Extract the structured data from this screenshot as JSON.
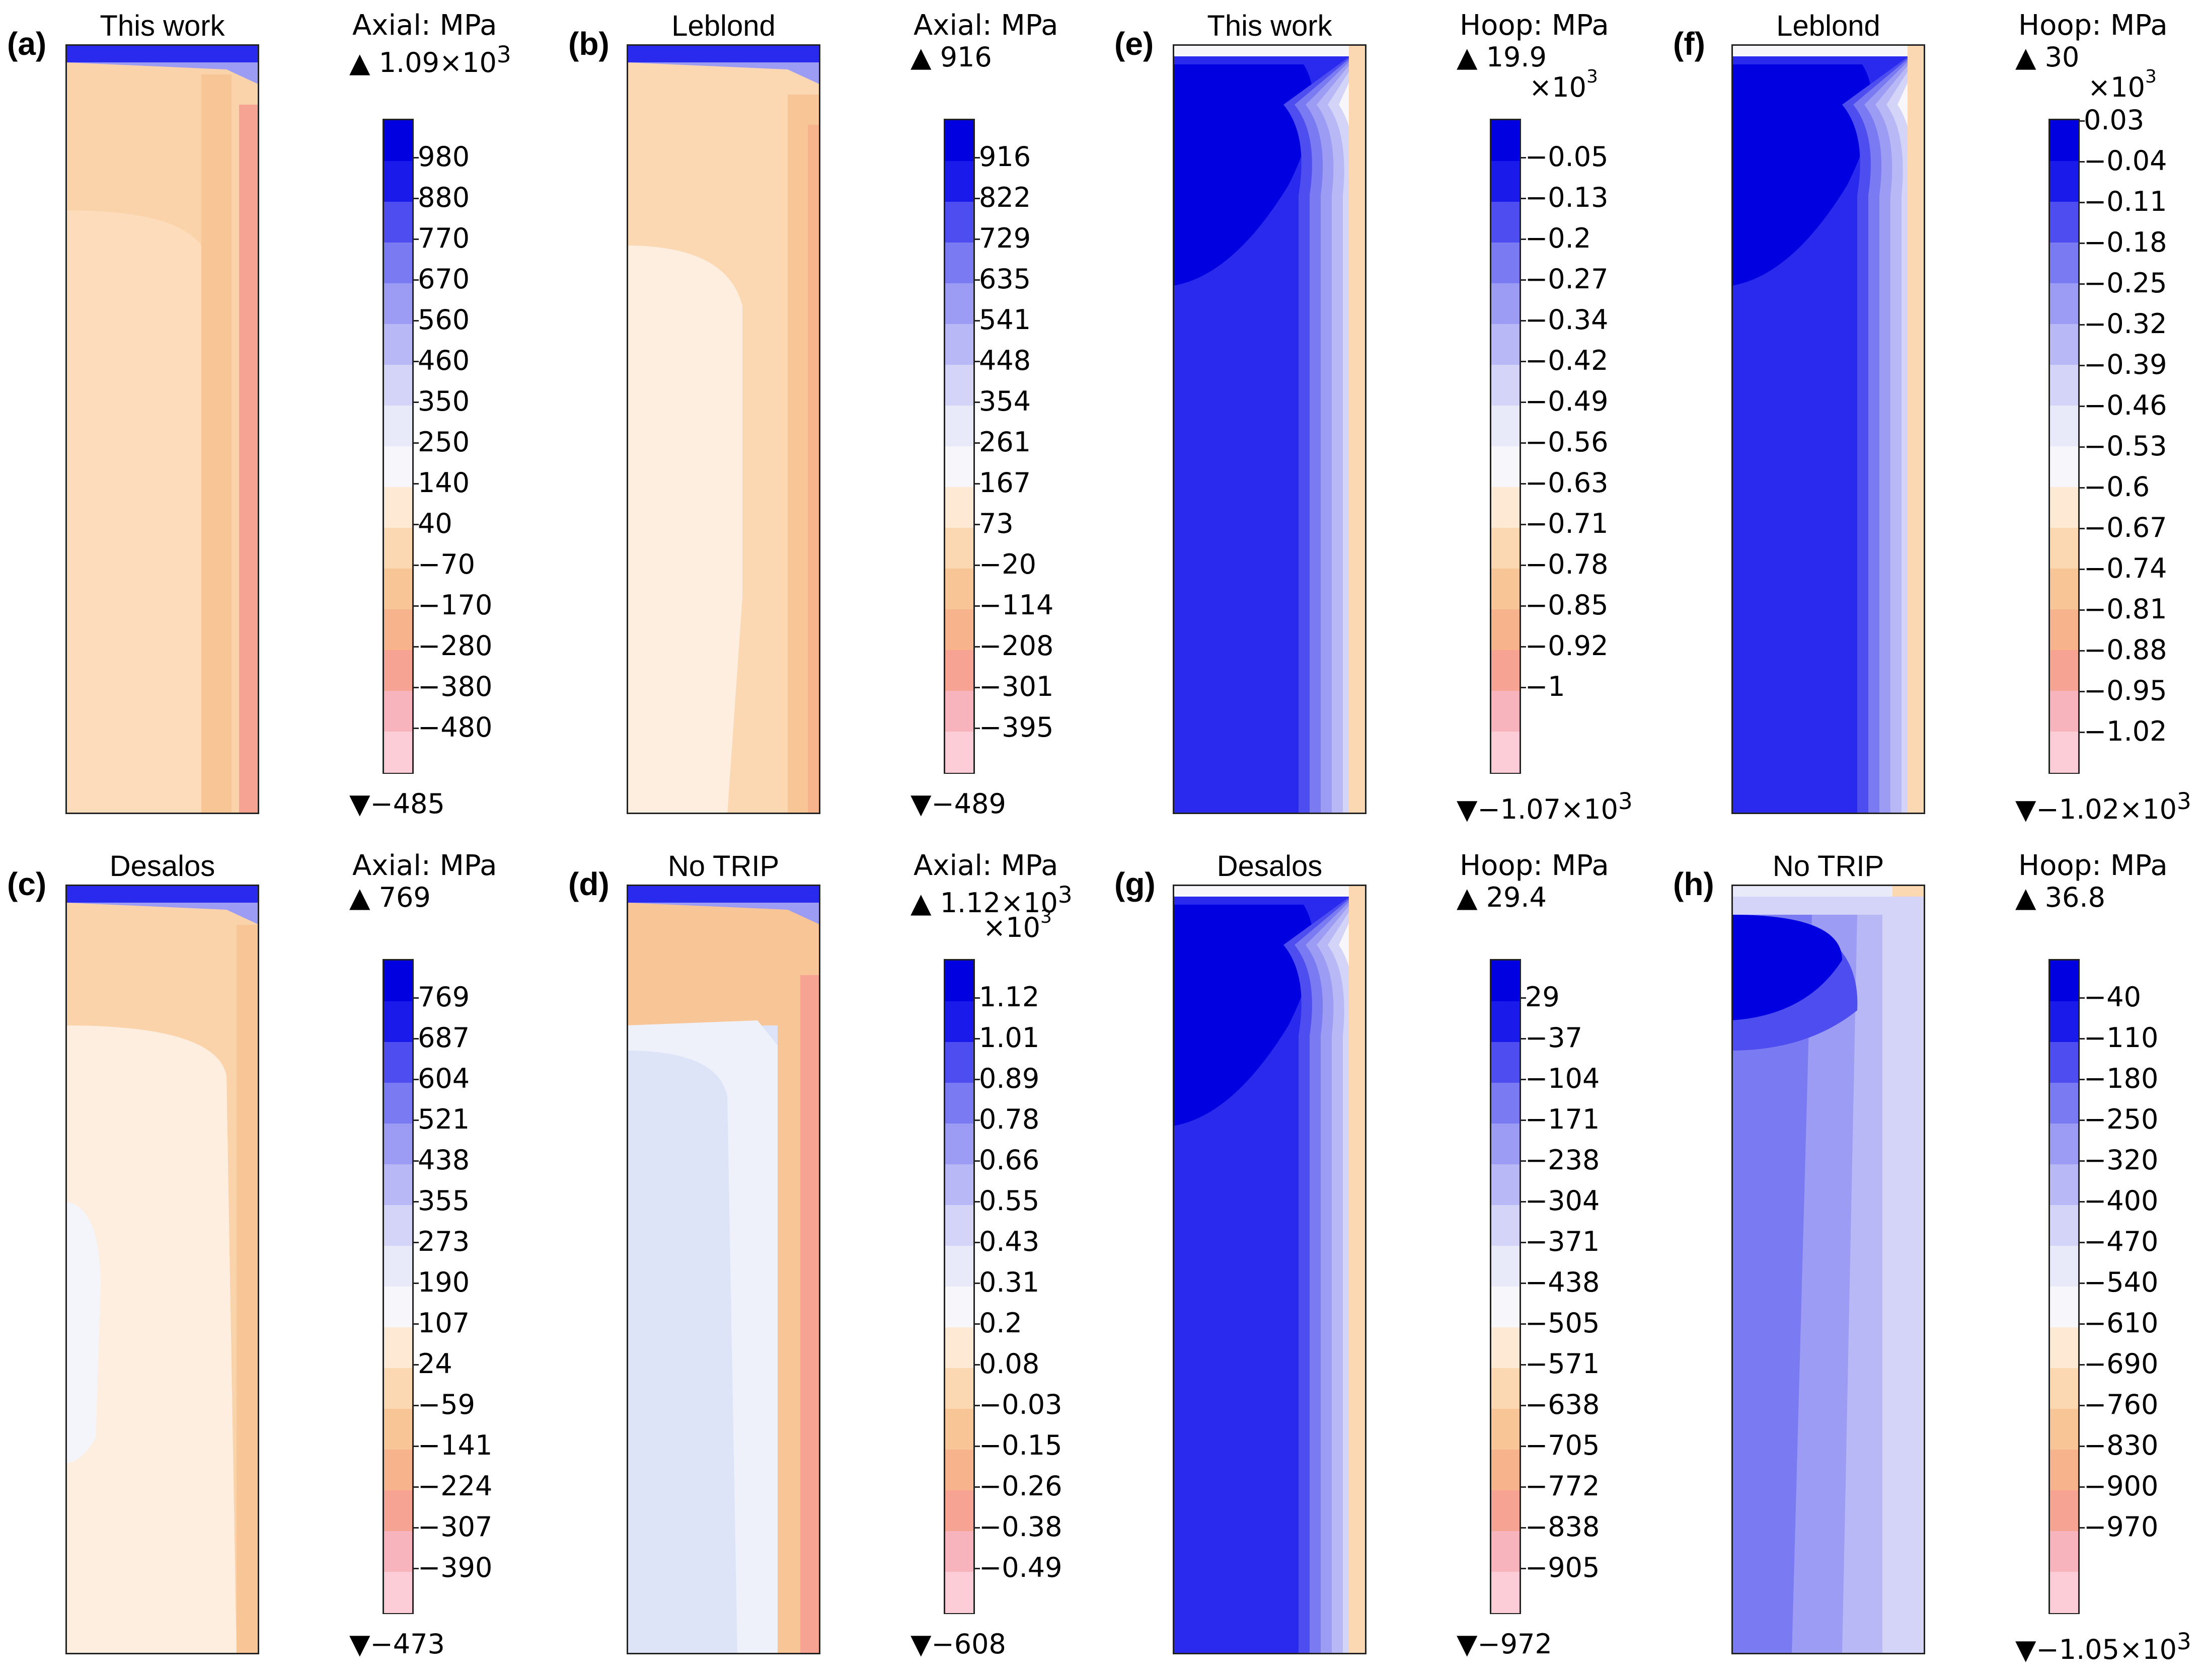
{
  "figure": {
    "panels": [
      {
        "id": "a",
        "letter": "(a)",
        "title": "This work",
        "quantity": "Axial: MPa",
        "max_label": "1.09×10",
        "max_exp": "3",
        "min_label": "−485",
        "min_exp": "",
        "multiplier": "",
        "ticks": [
          "980",
          "880",
          "770",
          "670",
          "560",
          "460",
          "350",
          "250",
          "140",
          "40",
          "−70",
          "−170",
          "−280",
          "−380",
          "−480"
        ],
        "pattern": "axial_trip"
      },
      {
        "id": "b",
        "letter": "(b)",
        "title": "Leblond",
        "quantity": "Axial: MPa",
        "max_label": "916",
        "max_exp": "",
        "min_label": "−489",
        "min_exp": "",
        "multiplier": "",
        "ticks": [
          "916",
          "822",
          "729",
          "635",
          "541",
          "448",
          "354",
          "261",
          "167",
          "73",
          "−20",
          "−114",
          "−208",
          "−301",
          "−395"
        ],
        "pattern": "axial_leblond"
      },
      {
        "id": "e",
        "letter": "(e)",
        "title": "This work",
        "quantity": "Hoop: MPa",
        "max_label": "19.9",
        "max_exp": "",
        "min_label": "−1.07×10",
        "min_exp": "3",
        "multiplier": "×10",
        "multiplier_exp": "3",
        "ticks": [
          "−0.05",
          "−0.13",
          "−0.2",
          "−0.27",
          "−0.34",
          "−0.42",
          "−0.49",
          "−0.56",
          "−0.63",
          "−0.71",
          "−0.78",
          "−0.85",
          "−0.92",
          "−1"
        ],
        "pattern": "hoop"
      },
      {
        "id": "f",
        "letter": "(f)",
        "title": "Leblond",
        "quantity": "Hoop: MPa",
        "max_label": "30",
        "max_exp": "",
        "min_label": "−1.02×10",
        "min_exp": "3",
        "multiplier": "×10",
        "multiplier_exp": "3",
        "ticks": [
          "0.03",
          "−0.04",
          "−0.11",
          "−0.18",
          "−0.25",
          "−0.32",
          "−0.39",
          "−0.46",
          "−0.53",
          "−0.6",
          "−0.67",
          "−0.74",
          "−0.81",
          "−0.88",
          "−0.95",
          "−1.02"
        ],
        "pattern": "hoop"
      },
      {
        "id": "c",
        "letter": "(c)",
        "title": "Desalos",
        "quantity": "Axial: MPa",
        "max_label": "769",
        "max_exp": "",
        "min_label": "−473",
        "min_exp": "",
        "multiplier": "",
        "ticks": [
          "769",
          "687",
          "604",
          "521",
          "438",
          "355",
          "273",
          "190",
          "107",
          "24",
          "−59",
          "−141",
          "−224",
          "−307",
          "−390"
        ],
        "pattern": "axial_desalos"
      },
      {
        "id": "d",
        "letter": "(d)",
        "title": "No TRIP",
        "quantity": "Axial: MPa",
        "max_label": "1.12×10",
        "max_exp": "3",
        "min_label": "−608",
        "min_exp": "",
        "multiplier": "×10",
        "multiplier_exp": "3",
        "ticks": [
          "1.12",
          "1.01",
          "0.89",
          "0.78",
          "0.66",
          "0.55",
          "0.43",
          "0.31",
          "0.2",
          "0.08",
          "−0.03",
          "−0.15",
          "−0.26",
          "−0.38",
          "−0.49"
        ],
        "pattern": "axial_notrip"
      },
      {
        "id": "g",
        "letter": "(g)",
        "title": "Desalos",
        "quantity": "Hoop: MPa",
        "max_label": "29.4",
        "max_exp": "",
        "min_label": "−972",
        "min_exp": "",
        "multiplier": "",
        "ticks": [
          "29",
          "−37",
          "−104",
          "−171",
          "−238",
          "−304",
          "−371",
          "−438",
          "−505",
          "−571",
          "−638",
          "−705",
          "−772",
          "−838",
          "−905"
        ],
        "pattern": "hoop"
      },
      {
        "id": "h",
        "letter": "(h)",
        "title": "No TRIP",
        "quantity": "Hoop: MPa",
        "max_label": "36.8",
        "max_exp": "",
        "min_label": "−1.05×10",
        "min_exp": "3",
        "multiplier": "",
        "ticks": [
          "−40",
          "−110",
          "−180",
          "−250",
          "−320",
          "−400",
          "−470",
          "−540",
          "−610",
          "−690",
          "−760",
          "−830",
          "−900",
          "−970"
        ],
        "pattern": "hoop_notrip"
      }
    ],
    "colormap": [
      "#0000e0",
      "#1a1aea",
      "#4d4df0",
      "#7a7af2",
      "#9c9cf4",
      "#b8b8f6",
      "#d4d4f8",
      "#e8eafa",
      "#f6f6fb",
      "#fde9d4",
      "#fbd7b2",
      "#f8c596",
      "#f6b38c",
      "#f6a394",
      "#f8b4bc",
      "#fccdd6"
    ]
  }
}
